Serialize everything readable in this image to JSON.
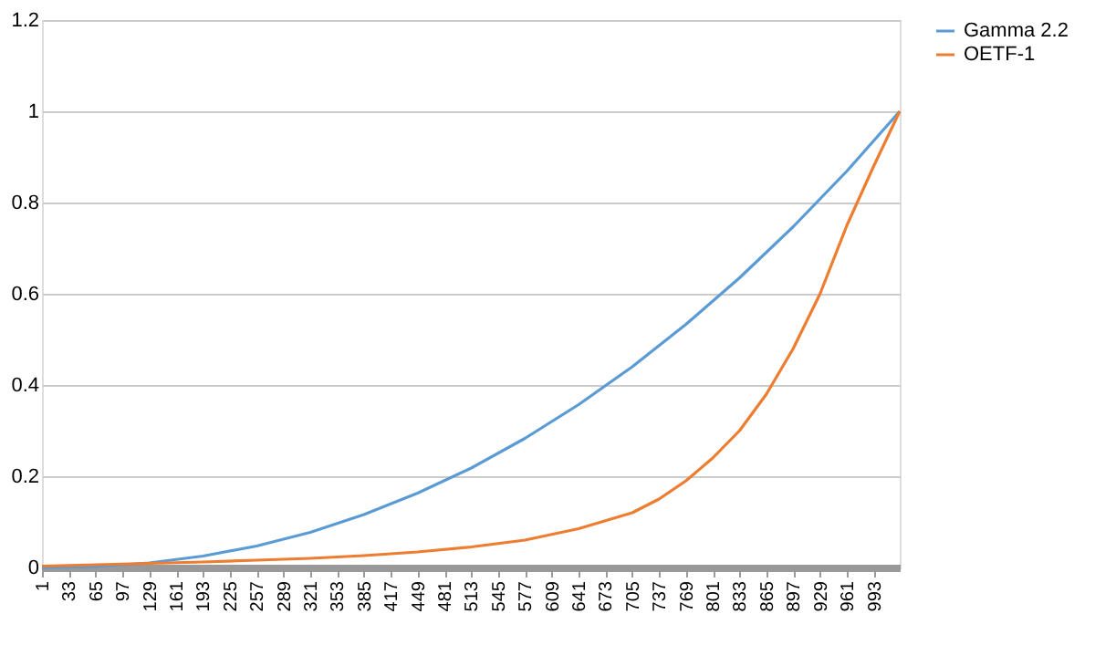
{
  "chart_data": {
    "type": "line",
    "xlim": [
      1,
      1024
    ],
    "xticks": [
      1,
      33,
      65,
      97,
      129,
      161,
      193,
      225,
      257,
      289,
      321,
      353,
      385,
      417,
      449,
      481,
      513,
      545,
      577,
      609,
      641,
      673,
      705,
      737,
      769,
      801,
      833,
      865,
      897,
      929,
      961,
      993
    ],
    "ylim": [
      0,
      1.2
    ],
    "yticks": [
      0,
      0.2,
      0.4,
      0.6,
      0.8,
      1,
      1.2
    ],
    "grid": "y",
    "legend": "right",
    "marker": "none",
    "line_style": "solid",
    "series": [
      {
        "name": "Gamma 2.2",
        "color": "#5b9bd5",
        "x": [
          1,
          65,
          129,
          193,
          257,
          321,
          385,
          449,
          513,
          577,
          641,
          705,
          769,
          833,
          897,
          961,
          1024
        ],
        "values": [
          0,
          0.002,
          0.01,
          0.025,
          0.047,
          0.077,
          0.116,
          0.163,
          0.218,
          0.283,
          0.357,
          0.44,
          0.533,
          0.635,
          0.747,
          0.869,
          1
        ]
      },
      {
        "name": "OETF-1",
        "color": "#ed7d31",
        "x": [
          1,
          65,
          129,
          193,
          257,
          321,
          385,
          449,
          513,
          577,
          641,
          705,
          737,
          769,
          801,
          833,
          865,
          897,
          929,
          961,
          993,
          1024
        ],
        "values": [
          0.003,
          0.006,
          0.009,
          0.012,
          0.016,
          0.02,
          0.026,
          0.034,
          0.045,
          0.06,
          0.085,
          0.12,
          0.15,
          0.19,
          0.24,
          0.3,
          0.38,
          0.48,
          0.6,
          0.75,
          0.88,
          1
        ]
      }
    ]
  }
}
